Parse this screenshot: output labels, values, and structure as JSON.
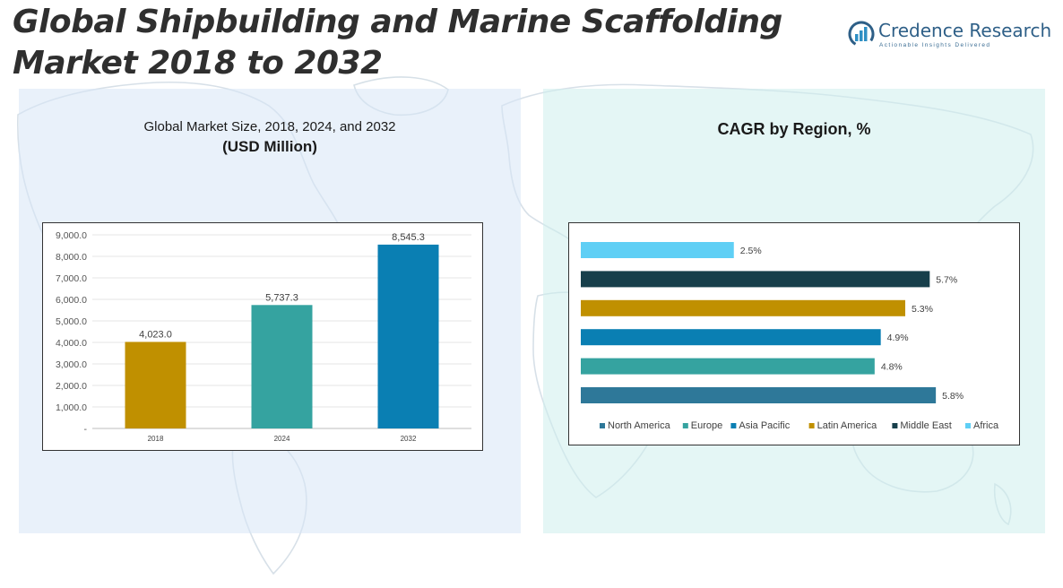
{
  "title_line1": "Global Shipbuilding and Marine Scaffolding",
  "title_line2": "Market 2018 to 2032",
  "logo": {
    "name": "Credence Research",
    "tagline": "Actionable Insights Delivered"
  },
  "colors": {
    "title": "#2f2f2f",
    "left_panel_bg": "#e3edf8",
    "right_panel_bg": "#dff3f1",
    "bar_2018": "#c09000",
    "bar_2024": "#35a3a0",
    "bar_2032": "#0a7fb3",
    "north_america": "#2e7899",
    "europe": "#35a3a0",
    "asia_pacific": "#0a7fb3",
    "latin_america": "#c09000",
    "middle_east": "#173f4b",
    "africa": "#5fcff5"
  },
  "chart_data": [
    {
      "type": "bar",
      "title": "Global Market Size, 2018, 2024, and 2032",
      "subtitle": "(USD Million)",
      "categories": [
        "2018",
        "2024",
        "2032"
      ],
      "values": [
        4023.0,
        5737.3,
        8545.3
      ],
      "data_labels": [
        "4,023.0",
        "5,737.3",
        "8,545.3"
      ],
      "ylim": [
        0,
        9000
      ],
      "y_ticks": [
        "-",
        "1,000.0",
        "2,000.0",
        "3,000.0",
        "4,000.0",
        "5,000.0",
        "6,000.0",
        "7,000.0",
        "8,000.0",
        "9,000.0"
      ],
      "bar_colors": [
        "#c09000",
        "#35a3a0",
        "#0a7fb3"
      ],
      "grid": true,
      "xlabel": "",
      "ylabel": ""
    },
    {
      "type": "bar",
      "orientation": "horizontal",
      "title": "CAGR by Region, %",
      "categories": [
        "North America",
        "Europe",
        "Asia Pacific",
        "Latin America",
        "Middle East",
        "Africa"
      ],
      "values": [
        5.8,
        4.8,
        4.9,
        5.3,
        5.7,
        2.5
      ],
      "data_labels": [
        "5.8%",
        "4.8%",
        "4.9%",
        "5.3%",
        "5.7%",
        "2.5%"
      ],
      "colors": [
        "#2e7899",
        "#35a3a0",
        "#0a7fb3",
        "#c09000",
        "#173f4b",
        "#5fcff5"
      ],
      "xlim": [
        0,
        6
      ],
      "legend": "bottom",
      "grid": false,
      "xlabel": "",
      "ylabel": ""
    }
  ]
}
